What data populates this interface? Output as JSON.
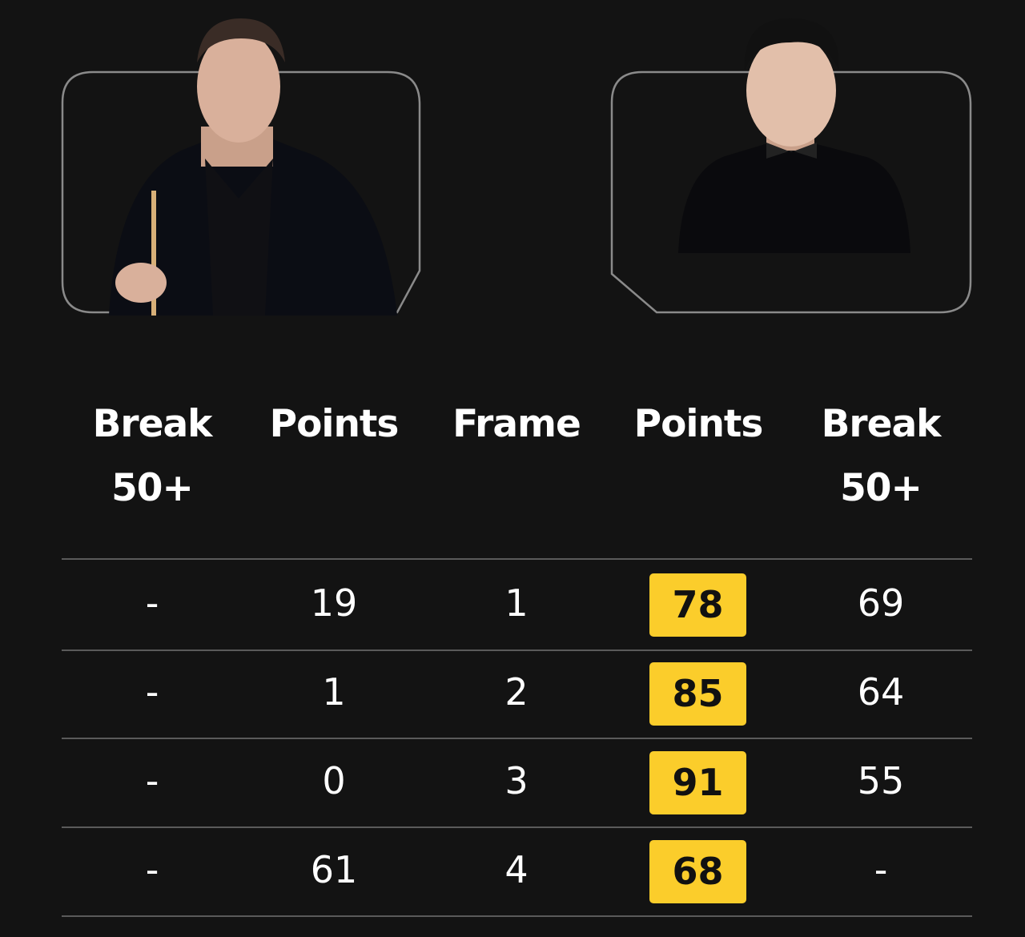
{
  "players": [
    {
      "side": "left",
      "photo_icon": "player-photo-left"
    },
    {
      "side": "right",
      "photo_icon": "player-photo-right"
    }
  ],
  "headers": {
    "left_break": "Break 50+",
    "left_break_l1": "Break",
    "left_break_l2": "50+",
    "left_points": "Points",
    "frame": "Frame",
    "right_points": "Points",
    "right_break_l1": "Break",
    "right_break_l2": "50+"
  },
  "rows": [
    {
      "left_break": "-",
      "left_points": "19",
      "frame": "1",
      "right_points": "78",
      "right_break": "69",
      "winner": "right"
    },
    {
      "left_break": "-",
      "left_points": "1",
      "frame": "2",
      "right_points": "85",
      "right_break": "64",
      "winner": "right"
    },
    {
      "left_break": "-",
      "left_points": "0",
      "frame": "3",
      "right_points": "91",
      "right_break": "55",
      "winner": "right"
    },
    {
      "left_break": "-",
      "left_points": "61",
      "frame": "4",
      "right_points": "68",
      "right_break": "-",
      "winner": "right"
    }
  ],
  "colors": {
    "background": "#131313",
    "highlight": "#fbcd2b",
    "divider": "#5a5a5a",
    "frame_border": "#8a8a8a"
  }
}
